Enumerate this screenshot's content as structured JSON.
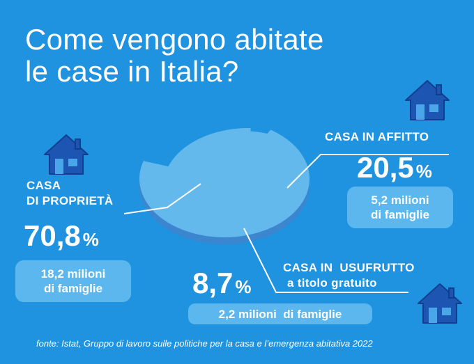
{
  "title": [
    "Come vengono abitate",
    "le case in Italia?"
  ],
  "colors": {
    "background": "#1f93e0",
    "pie_top": "#63b9ec",
    "pie_side": "#3b86cf",
    "house": "#1d55b3",
    "pill": "#5bb7ee"
  },
  "chart_data": {
    "type": "pie",
    "title": "Come vengono abitate le case in Italia?",
    "slices": [
      {
        "label": "CASA DI PROPRIETÀ",
        "value": 70.8,
        "families": "18,2 milioni di famiglie"
      },
      {
        "label": "CASA IN AFFITTO",
        "value": 20.5,
        "families": "5,2 milioni di famiglie"
      },
      {
        "label": "CASA IN USUFRUTTO a titolo gratuito",
        "value": 8.7,
        "families": "2,2 milioni di famiglie"
      }
    ]
  },
  "labels": {
    "proprieta": {
      "title": [
        "CASA",
        "DI PROPRIETÀ"
      ],
      "value": "70,8",
      "pct": "%",
      "families": [
        "18,2 milioni",
        "di famiglie"
      ]
    },
    "affitto": {
      "title": "CASA IN AFFITTO",
      "value": "20,5",
      "pct": "%",
      "families": [
        "5,2 milioni",
        "di famiglie"
      ]
    },
    "usufrutto": {
      "title": [
        "CASA IN  USUFRUTTO",
        "a titolo gratuito"
      ],
      "value": "8,7",
      "pct": "%",
      "families": "2,2 milioni  di famiglie"
    }
  },
  "source": "fonte: Istat, Gruppo di lavoro sulle politiche per la casa e l’emergenza abitativa 2022"
}
